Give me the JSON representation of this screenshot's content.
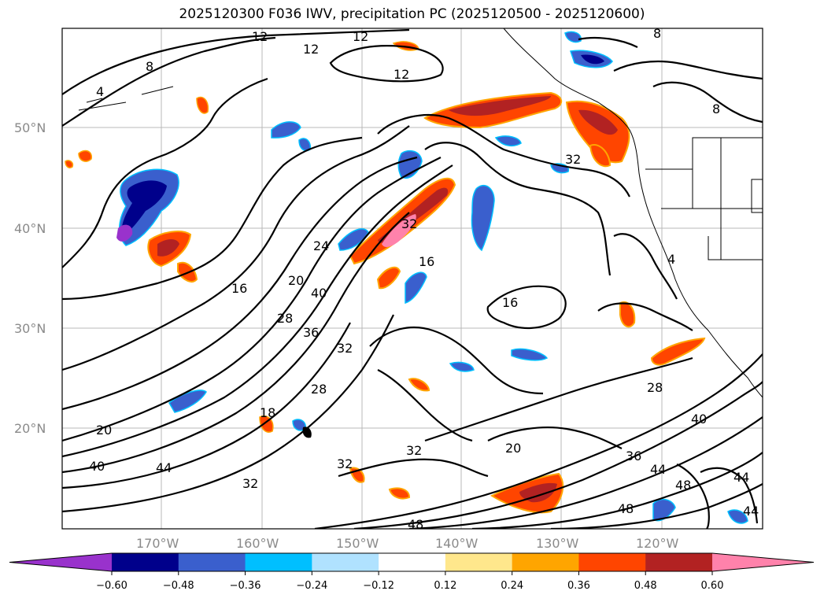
{
  "title": "2025120300 F036 IWV, precipitation PC (2025120500 - 2025120600)",
  "map": {
    "lat_labels": [
      "50°N",
      "40°N",
      "30°N",
      "20°N"
    ],
    "lon_labels": [
      "170°W",
      "160°W",
      "150°W",
      "140°W",
      "130°W",
      "120°W"
    ],
    "contour_labels": [
      "12",
      "12",
      "12",
      "8",
      "8",
      "4",
      "12",
      "8",
      "32",
      "32",
      "24",
      "20",
      "40",
      "16",
      "16",
      "16",
      "28",
      "36",
      "32",
      "28",
      "18",
      "20",
      "40",
      "44",
      "32",
      "32",
      "32",
      "20",
      "28",
      "36",
      "40",
      "44",
      "48",
      "48",
      "44",
      "44",
      "48",
      "4"
    ],
    "grid": true
  },
  "colorbar": {
    "ticks": [
      "−0.60",
      "−0.48",
      "−0.36",
      "−0.24",
      "−0.12",
      "0.12",
      "0.24",
      "0.36",
      "0.48",
      "0.60"
    ],
    "colors": [
      "#9932cc",
      "#00008b",
      "#3a5fcd",
      "#00bfff",
      "#b0e2ff",
      "#ffffff",
      "#ffe78c",
      "#ffa500",
      "#ff4500",
      "#b22222",
      "#ff82ab"
    ],
    "extend": "both"
  }
}
